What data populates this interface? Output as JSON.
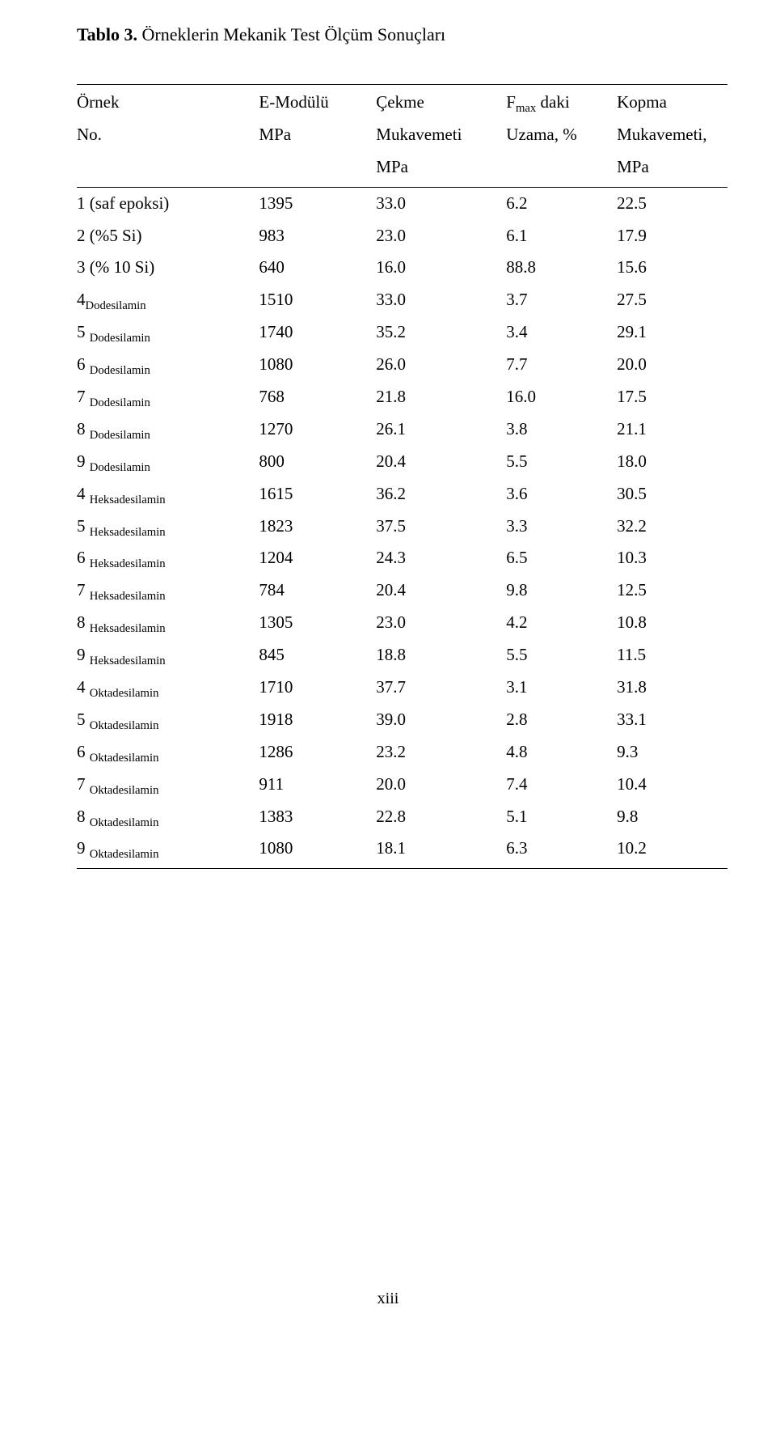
{
  "title_bold": "Tablo 3.",
  "title_rest": " Örneklerin Mekanik Test Ölçüm Sonuçları",
  "headers": {
    "c0_l1": "Örnek",
    "c0_l2": "No.",
    "c1_l1": "E-Modülü",
    "c1_l2": "MPa",
    "c2_l1": "Çekme",
    "c2_l2": "Mukavemeti",
    "c2_l3": "MPa",
    "c3_l1a": "F",
    "c3_l1b": "max",
    "c3_l1c": " daki",
    "c3_l2": "Uzama, %",
    "c4_l1": "Kopma",
    "c4_l2": "Mukavemeti,",
    "c4_l3": "MPa"
  },
  "rows": [
    {
      "label_pre": "1 (saf epoksi)",
      "label_sub": "",
      "e": "1395",
      "cekme": "33.0",
      "uzama": "6.2",
      "kopma": "22.5"
    },
    {
      "label_pre": "2 (%5 Si)",
      "label_sub": "",
      "e": "983",
      "cekme": "23.0",
      "uzama": "6.1",
      "kopma": "17.9"
    },
    {
      "label_pre": "3 (% 10 Si)",
      "label_sub": "",
      "e": "640",
      "cekme": "16.0",
      "uzama": "88.8",
      "kopma": "15.6"
    },
    {
      "label_pre": "4",
      "label_sub": "Dodesilamin",
      "e": "1510",
      "cekme": "33.0",
      "uzama": "3.7",
      "kopma": "27.5"
    },
    {
      "label_pre": "5 ",
      "label_sub": "Dodesilamin",
      "e": "1740",
      "cekme": "35.2",
      "uzama": "3.4",
      "kopma": "29.1"
    },
    {
      "label_pre": "6 ",
      "label_sub": "Dodesilamin",
      "e": "1080",
      "cekme": "26.0",
      "uzama": "7.7",
      "kopma": "20.0"
    },
    {
      "label_pre": "7 ",
      "label_sub": "Dodesilamin",
      "e": "768",
      "cekme": "21.8",
      "uzama": "16.0",
      "kopma": "17.5"
    },
    {
      "label_pre": "8 ",
      "label_sub": "Dodesilamin",
      "e": "1270",
      "cekme": "26.1",
      "uzama": "3.8",
      "kopma": "21.1"
    },
    {
      "label_pre": "9 ",
      "label_sub": "Dodesilamin",
      "e": "800",
      "cekme": "20.4",
      "uzama": "5.5",
      "kopma": "18.0"
    },
    {
      "label_pre": "4 ",
      "label_sub": "Heksadesilamin",
      "e": "1615",
      "cekme": "36.2",
      "uzama": "3.6",
      "kopma": "30.5"
    },
    {
      "label_pre": "5 ",
      "label_sub": "Heksadesilamin",
      "e": "1823",
      "cekme": "37.5",
      "uzama": "3.3",
      "kopma": "32.2"
    },
    {
      "label_pre": "6 ",
      "label_sub": "Heksadesilamin",
      "e": "1204",
      "cekme": "24.3",
      "uzama": "6.5",
      "kopma": "10.3"
    },
    {
      "label_pre": "7 ",
      "label_sub": "Heksadesilamin",
      "e": "784",
      "cekme": "20.4",
      "uzama": "9.8",
      "kopma": "12.5"
    },
    {
      "label_pre": "8 ",
      "label_sub": "Heksadesilamin",
      "e": "1305",
      "cekme": "23.0",
      "uzama": "4.2",
      "kopma": "10.8"
    },
    {
      "label_pre": "9 ",
      "label_sub": "Heksadesilamin",
      "e": "845",
      "cekme": "18.8",
      "uzama": "5.5",
      "kopma": "11.5"
    },
    {
      "label_pre": "4 ",
      "label_sub": "Oktadesilamin",
      "e": "1710",
      "cekme": "37.7",
      "uzama": "3.1",
      "kopma": "31.8"
    },
    {
      "label_pre": "5 ",
      "label_sub": "Oktadesilamin",
      "e": "1918",
      "cekme": "39.0",
      "uzama": "2.8",
      "kopma": "33.1"
    },
    {
      "label_pre": "6 ",
      "label_sub": "Oktadesilamin",
      "e": "1286",
      "cekme": "23.2",
      "uzama": "4.8",
      "kopma": "9.3"
    },
    {
      "label_pre": "7 ",
      "label_sub": "Oktadesilamin",
      "e": "911",
      "cekme": "20.0",
      "uzama": "7.4",
      "kopma": "10.4"
    },
    {
      "label_pre": "8 ",
      "label_sub": "Oktadesilamin",
      "e": "1383",
      "cekme": "22.8",
      "uzama": "5.1",
      "kopma": "9.8"
    },
    {
      "label_pre": "9 ",
      "label_sub": "Oktadesilamin",
      "e": "1080",
      "cekme": "18.1",
      "uzama": "6.3",
      "kopma": "10.2"
    }
  ],
  "footer": "xiii"
}
